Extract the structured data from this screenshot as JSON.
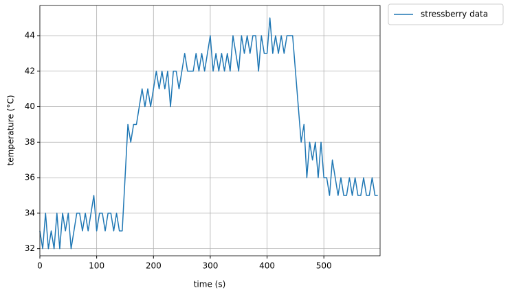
{
  "chart_data": {
    "type": "line",
    "xlabel": "time (s)",
    "ylabel": "temperature (°C)",
    "x": [
      0,
      5,
      10,
      15,
      20,
      25,
      30,
      35,
      40,
      45,
      50,
      55,
      60,
      65,
      70,
      75,
      80,
      85,
      90,
      95,
      100,
      105,
      110,
      115,
      120,
      125,
      130,
      135,
      140,
      145,
      150,
      155,
      160,
      165,
      170,
      175,
      180,
      185,
      190,
      195,
      200,
      205,
      210,
      215,
      220,
      225,
      230,
      235,
      240,
      245,
      250,
      255,
      260,
      265,
      270,
      275,
      280,
      285,
      290,
      295,
      300,
      305,
      310,
      315,
      320,
      325,
      330,
      335,
      340,
      345,
      350,
      355,
      360,
      365,
      370,
      375,
      380,
      385,
      390,
      395,
      400,
      405,
      410,
      415,
      420,
      425,
      430,
      435,
      440,
      445,
      450,
      455,
      460,
      465,
      470,
      475,
      480,
      485,
      490,
      495,
      500,
      505,
      510,
      515,
      520,
      525,
      530,
      535,
      540,
      545,
      550,
      555,
      560,
      565,
      570,
      575,
      580,
      585,
      590,
      595
    ],
    "series": [
      {
        "name": "stressberry data",
        "color": "#1f77b4",
        "values": [
          33,
          32,
          34,
          32,
          33,
          32,
          34,
          32,
          34,
          33,
          34,
          32,
          33,
          34,
          34,
          33,
          34,
          33,
          34,
          35,
          33,
          34,
          34,
          33,
          34,
          34,
          33,
          34,
          33,
          33,
          36,
          39,
          38,
          39,
          39,
          40,
          41,
          40,
          41,
          40,
          41,
          42,
          41,
          42,
          41,
          42,
          40,
          42,
          42,
          41,
          42,
          43,
          42,
          42,
          42,
          43,
          42,
          43,
          42,
          43,
          44,
          42,
          43,
          42,
          43,
          42,
          43,
          42,
          44,
          43,
          42,
          44,
          43,
          44,
          43,
          44,
          44,
          42,
          44,
          43,
          43,
          45,
          43,
          44,
          43,
          44,
          43,
          44,
          44,
          44,
          42,
          40,
          38,
          39,
          36,
          38,
          37,
          38,
          36,
          38,
          36,
          36,
          35,
          37,
          36,
          35,
          36,
          35,
          35,
          36,
          35,
          36,
          35,
          35,
          36,
          35,
          35,
          36,
          35,
          35
        ]
      }
    ],
    "xlim": [
      0,
      599
    ],
    "ylim": [
      31.6,
      45.7
    ],
    "xticks": [
      0,
      100,
      200,
      300,
      400,
      500
    ],
    "yticks": [
      32,
      34,
      36,
      38,
      40,
      42,
      44
    ],
    "grid": true,
    "legend": "outside upper right"
  }
}
